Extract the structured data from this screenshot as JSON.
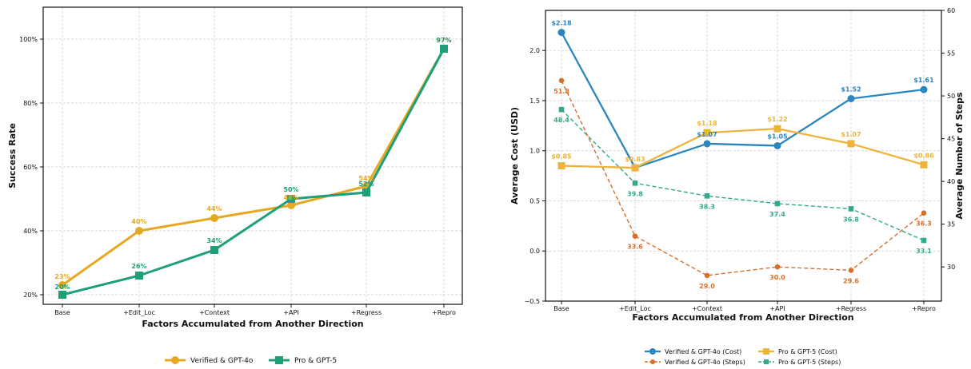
{
  "colors": {
    "verified_gpt4o": "#E6A820",
    "pro_gpt5": "#1E9E79",
    "cost_gpt4o": "#2A86BF",
    "steps_gpt4o": "#D66F2C",
    "cost_gpt5": "#EDB33B",
    "steps_gpt5": "#32A98A",
    "grid": "#cccccc"
  },
  "chart_data": [
    {
      "type": "line",
      "categories": [
        "Base",
        "+Edit_Loc",
        "+Context",
        "+API",
        "+Regress",
        "+Repro"
      ],
      "xlabel": "Factors Accumulated from Another Direction",
      "ylabel": "Success Rate",
      "ylim": [
        17,
        110
      ],
      "yticks": [
        20,
        40,
        60,
        80,
        100
      ],
      "ytick_labels": [
        "20%",
        "40%",
        "60%",
        "80%",
        "100%"
      ],
      "grid": true,
      "legend_position": "bottom-center",
      "series": [
        {
          "name": "Verified & GPT-4o",
          "values": [
            23,
            40,
            44,
            48,
            54,
            97
          ],
          "labels": [
            "23%",
            "40%",
            "44%",
            "48%",
            "54%",
            "97%"
          ],
          "marker": "circle",
          "color_key": "verified_gpt4o"
        },
        {
          "name": "Pro & GPT-5",
          "values": [
            20,
            26,
            34,
            50,
            52,
            97
          ],
          "labels": [
            "20%",
            "26%",
            "34%",
            "50%",
            "52%",
            "97%"
          ],
          "marker": "square",
          "color_key": "pro_gpt5"
        }
      ]
    },
    {
      "type": "line",
      "categories": [
        "Base",
        "+Edit_Loc",
        "+Context",
        "+API",
        "+Regress",
        "+Repro"
      ],
      "xlabel": "Factors Accumulated from Another Direction",
      "ylabel": "Average Cost (USD)",
      "ylim": [
        -0.5,
        2.4
      ],
      "yticks": [
        -0.5,
        0.0,
        0.5,
        1.0,
        1.5,
        2.0
      ],
      "ytick_labels": [
        "−0.5",
        "0.0",
        "0.5",
        "1.0",
        "1.5",
        "2.0"
      ],
      "y2label": "Average Number of Steps",
      "y2lim": [
        26,
        60
      ],
      "y2ticks": [
        30,
        35,
        40,
        45,
        50,
        55,
        60
      ],
      "y2tick_labels": [
        "30",
        "35",
        "40",
        "45",
        "50",
        "55",
        "60"
      ],
      "grid": true,
      "legend_position": "bottom-center",
      "series": [
        {
          "name": "Verified & GPT-4o (Cost)",
          "axis": "left",
          "values": [
            2.18,
            0.83,
            1.07,
            1.05,
            1.52,
            1.61
          ],
          "labels": [
            "$2.18",
            "",
            "$1.07",
            "$1.05",
            "$1.52",
            "$1.61"
          ],
          "marker": "circle",
          "dashed": false,
          "color_key": "cost_gpt4o"
        },
        {
          "name": "Pro & GPT-5 (Cost)",
          "axis": "left",
          "values": [
            0.85,
            0.83,
            1.18,
            1.22,
            1.07,
            0.86
          ],
          "labels": [
            "$0.85",
            "$0.83",
            "$1.18",
            "$1.22",
            "$1.07",
            "$0.86"
          ],
          "marker": "square",
          "dashed": false,
          "color_key": "cost_gpt5"
        },
        {
          "name": "Verified & GPT-4o (Steps)",
          "axis": "right",
          "values": [
            51.8,
            33.6,
            29.0,
            30.0,
            29.6,
            36.3
          ],
          "labels": [
            "51.8",
            "33.6",
            "29.0",
            "30.0",
            "29.6",
            "36.3"
          ],
          "marker": "circle",
          "dashed": true,
          "color_key": "steps_gpt4o"
        },
        {
          "name": "Pro & GPT-5 (Steps)",
          "axis": "right",
          "values": [
            48.4,
            39.8,
            38.3,
            37.4,
            36.8,
            33.1
          ],
          "labels": [
            "48.4",
            "39.8",
            "38.3",
            "37.4",
            "36.8",
            "33.1"
          ],
          "marker": "square",
          "dashed": true,
          "color_key": "steps_gpt5"
        }
      ]
    }
  ]
}
